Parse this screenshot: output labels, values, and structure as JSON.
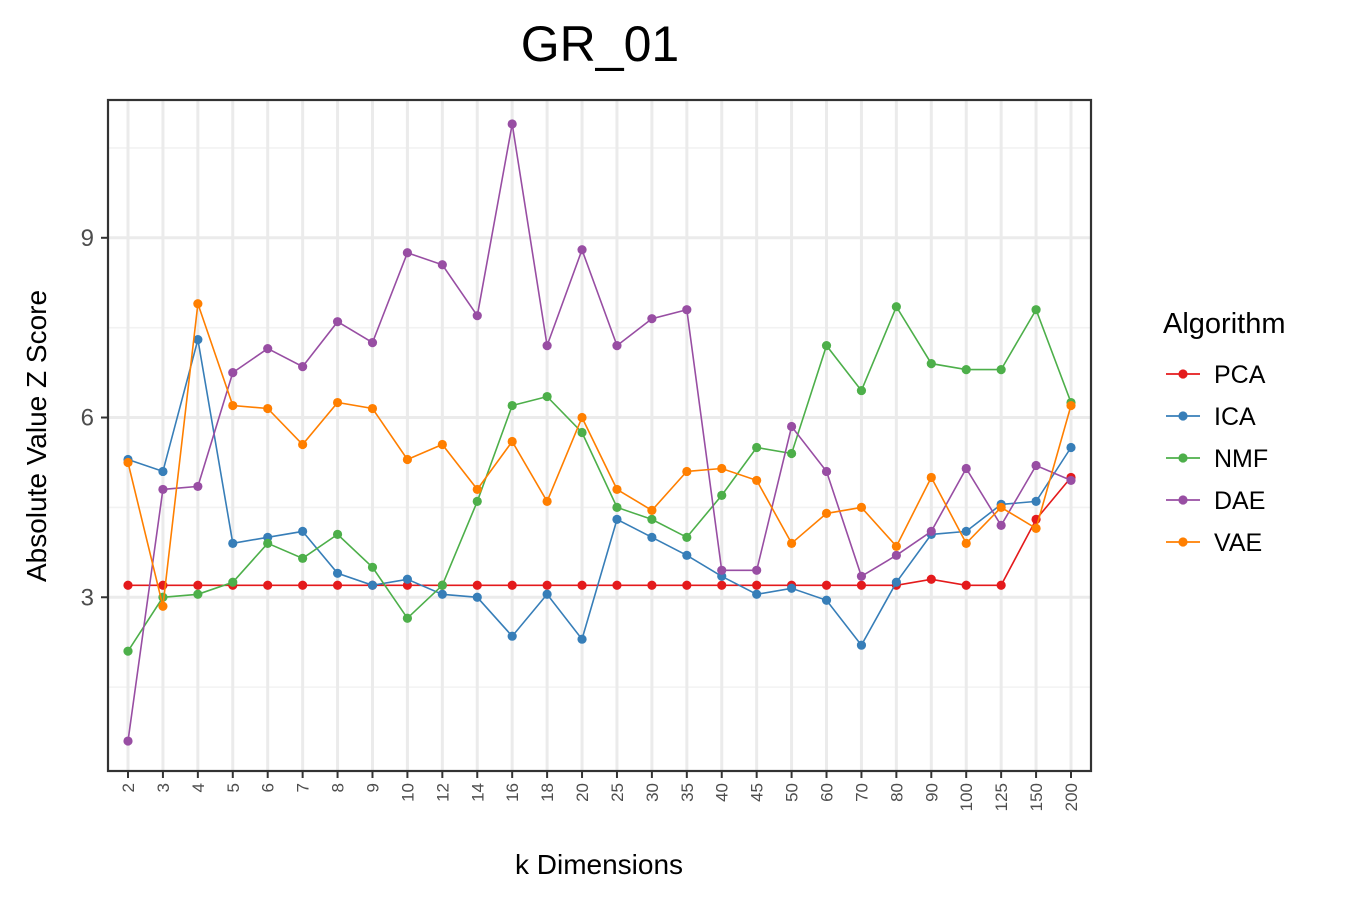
{
  "chart_data": {
    "type": "line",
    "title": "GR_01",
    "xlabel": "k Dimensions",
    "ylabel": "Absolute Value Z Score",
    "categories": [
      "2",
      "3",
      "4",
      "5",
      "6",
      "7",
      "8",
      "9",
      "10",
      "12",
      "14",
      "16",
      "18",
      "20",
      "25",
      "30",
      "35",
      "40",
      "45",
      "50",
      "60",
      "70",
      "80",
      "90",
      "100",
      "125",
      "150",
      "200"
    ],
    "yticks": [
      3,
      6,
      9
    ],
    "ylim": [
      0.1,
      11.3
    ],
    "grid": true,
    "legend": {
      "title": "Algorithm",
      "position": "right"
    },
    "series": [
      {
        "name": "PCA",
        "color": "#e41a1c",
        "values": [
          3.2,
          3.2,
          3.2,
          3.2,
          3.2,
          3.2,
          3.2,
          3.2,
          3.2,
          3.2,
          3.2,
          3.2,
          3.2,
          3.2,
          3.2,
          3.2,
          3.2,
          3.2,
          3.2,
          3.2,
          3.2,
          3.2,
          3.2,
          3.3,
          3.2,
          3.2,
          4.3,
          5.0
        ]
      },
      {
        "name": "ICA",
        "color": "#377eb8",
        "values": [
          5.3,
          5.1,
          7.3,
          3.9,
          4.0,
          4.1,
          3.4,
          3.2,
          3.3,
          3.05,
          3.0,
          2.35,
          3.05,
          2.3,
          4.3,
          4.0,
          3.7,
          3.35,
          3.05,
          3.15,
          2.95,
          2.2,
          3.25,
          4.05,
          4.1,
          4.55,
          4.6,
          5.5
        ]
      },
      {
        "name": "NMF",
        "color": "#4daf4a",
        "values": [
          2.1,
          3.0,
          3.05,
          3.25,
          3.9,
          3.65,
          4.05,
          3.5,
          2.65,
          3.2,
          4.6,
          6.2,
          6.35,
          5.75,
          4.5,
          4.3,
          4.0,
          4.7,
          5.5,
          5.4,
          7.2,
          6.45,
          7.85,
          6.9,
          6.8,
          6.8,
          7.8,
          6.25
        ]
      },
      {
        "name": "DAE",
        "color": "#984ea3",
        "values": [
          0.6,
          4.8,
          4.85,
          6.75,
          7.15,
          6.85,
          7.6,
          7.25,
          8.75,
          8.55,
          7.7,
          10.9,
          7.2,
          8.8,
          7.2,
          7.65,
          7.8,
          3.45,
          3.45,
          5.85,
          5.1,
          3.35,
          3.7,
          4.1,
          5.15,
          4.2,
          5.2,
          4.95
        ]
      },
      {
        "name": "VAE",
        "color": "#ff7f00",
        "values": [
          5.25,
          2.85,
          7.9,
          6.2,
          6.15,
          5.55,
          6.25,
          6.15,
          5.3,
          5.55,
          4.8,
          5.6,
          4.6,
          6.0,
          4.8,
          4.45,
          5.1,
          5.15,
          4.95,
          3.9,
          4.4,
          4.5,
          3.85,
          5.0,
          3.9,
          4.5,
          4.15,
          6.2
        ]
      }
    ]
  }
}
